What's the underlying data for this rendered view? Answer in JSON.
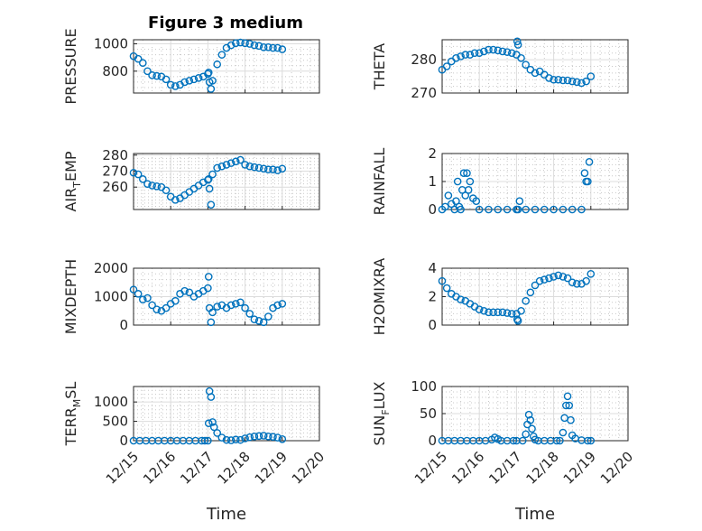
{
  "figure": {
    "title": "Figure 3 medium",
    "colors": {
      "marker": "#0072bd",
      "axes": "#262626",
      "grid": "#dcdcdc"
    }
  },
  "chart_data": [
    {
      "type": "scatter",
      "id": "pressure",
      "ylabel": "PRESSURE",
      "xlim": [
        "12/15",
        "12/20"
      ],
      "ylim": [
        640,
        1030
      ],
      "yticks": [
        800,
        1000
      ],
      "xticks": [],
      "grid": "major+minor",
      "x": [
        "12/15 00:00",
        "12/15 03:00",
        "12/15 06:00",
        "12/15 09:00",
        "12/15 12:00",
        "12/15 15:00",
        "12/15 18:00",
        "12/15 21:00",
        "12/16 00:00",
        "12/16 03:00",
        "12/16 06:00",
        "12/16 09:00",
        "12/16 12:00",
        "12/16 15:00",
        "12/16 18:00",
        "12/16 21:00",
        "12/17 00:00",
        "12/17 00:30",
        "12/17 01:00",
        "12/17 02:00",
        "12/17 03:00",
        "12/17 06:00",
        "12/17 09:00",
        "12/17 12:00",
        "12/17 15:00",
        "12/17 18:00",
        "12/17 21:00",
        "12/18 00:00",
        "12/18 03:00",
        "12/18 06:00",
        "12/18 09:00",
        "12/18 12:00",
        "12/18 15:00",
        "12/18 18:00",
        "12/18 21:00",
        "12/19 00:00"
      ],
      "y": [
        910,
        890,
        860,
        800,
        770,
        765,
        760,
        740,
        700,
        690,
        700,
        720,
        730,
        740,
        750,
        760,
        780,
        790,
        720,
        670,
        730,
        850,
        920,
        970,
        990,
        1005,
        1010,
        1005,
        1000,
        990,
        985,
        975,
        975,
        970,
        970,
        960
      ]
    },
    {
      "type": "scatter",
      "id": "theta",
      "ylabel": "THETA",
      "xlim": [
        "12/15",
        "12/20"
      ],
      "ylim": [
        270,
        286
      ],
      "yticks": [
        270,
        280
      ],
      "xticks": [],
      "grid": "major+minor",
      "x": [
        "12/15 00:00",
        "12/15 03:00",
        "12/15 06:00",
        "12/15 09:00",
        "12/15 12:00",
        "12/15 15:00",
        "12/15 18:00",
        "12/15 21:00",
        "12/16 00:00",
        "12/16 03:00",
        "12/16 06:00",
        "12/16 09:00",
        "12/16 12:00",
        "12/16 15:00",
        "12/16 18:00",
        "12/16 21:00",
        "12/17 00:00",
        "12/17 00:30",
        "12/17 01:00",
        "12/17 03:00",
        "12/17 06:00",
        "12/17 09:00",
        "12/17 12:00",
        "12/17 15:00",
        "12/17 18:00",
        "12/17 21:00",
        "12/18 00:00",
        "12/18 03:00",
        "12/18 06:00",
        "12/18 09:00",
        "12/18 12:00",
        "12/18 15:00",
        "12/18 18:00",
        "12/18 21:00",
        "12/19 00:00"
      ],
      "y": [
        277,
        278,
        279.5,
        280.5,
        281,
        281.5,
        281.5,
        282,
        282,
        282.5,
        283,
        283,
        282.8,
        282.5,
        282.3,
        282,
        281.5,
        285.5,
        284.5,
        280.5,
        278.5,
        277,
        276,
        276.5,
        275.5,
        274.5,
        274,
        274,
        273.8,
        273.8,
        273.5,
        273.3,
        273,
        273.5,
        275
      ]
    },
    {
      "type": "scatter",
      "id": "air-temp",
      "ylabel": "AIR_TEMP",
      "xlim": [
        "12/15",
        "12/20"
      ],
      "ylim": [
        246,
        281
      ],
      "yticks": [
        260,
        270,
        280
      ],
      "xticks": [],
      "grid": "major+minor",
      "x": [
        "12/15 00:00",
        "12/15 03:00",
        "12/15 06:00",
        "12/15 09:00",
        "12/15 12:00",
        "12/15 15:00",
        "12/15 18:00",
        "12/15 21:00",
        "12/16 00:00",
        "12/16 03:00",
        "12/16 06:00",
        "12/16 09:00",
        "12/16 12:00",
        "12/16 15:00",
        "12/16 18:00",
        "12/16 21:00",
        "12/17 00:00",
        "12/17 00:30",
        "12/17 01:00",
        "12/17 02:00",
        "12/17 03:00",
        "12/17 06:00",
        "12/17 09:00",
        "12/17 12:00",
        "12/17 15:00",
        "12/17 18:00",
        "12/17 21:00",
        "12/18 00:00",
        "12/18 03:00",
        "12/18 06:00",
        "12/18 09:00",
        "12/18 12:00",
        "12/18 15:00",
        "12/18 18:00",
        "12/18 21:00",
        "12/19 00:00"
      ],
      "y": [
        269,
        268,
        265,
        262,
        261,
        260.5,
        260,
        258,
        254,
        252,
        253,
        255,
        257,
        259,
        261,
        263,
        264.5,
        265,
        259,
        249,
        268,
        272,
        273,
        274,
        275,
        276,
        277,
        274,
        273,
        272.5,
        272,
        271.5,
        271,
        271,
        270.5,
        271.5
      ]
    },
    {
      "type": "scatter",
      "id": "rainfall",
      "ylabel": "RAINFALL",
      "xlim": [
        "12/15",
        "12/20"
      ],
      "ylim": [
        0,
        2
      ],
      "yticks": [
        0,
        1,
        2
      ],
      "xticks": [],
      "grid": "major+minor",
      "x": [
        "12/15 00:00",
        "12/15 02:00",
        "12/15 04:00",
        "12/15 06:00",
        "12/15 08:00",
        "12/15 09:00",
        "12/15 10:00",
        "12/15 11:00",
        "12/15 12:00",
        "12/15 13:00",
        "12/15 14:00",
        "12/15 15:00",
        "12/15 16:00",
        "12/15 17:00",
        "12/15 18:00",
        "12/15 20:00",
        "12/15 22:00",
        "12/16 00:00",
        "12/16 06:00",
        "12/16 12:00",
        "12/16 18:00",
        "12/17 00:00",
        "12/17 01:00",
        "12/17 02:00",
        "12/17 06:00",
        "12/17 12:00",
        "12/17 18:00",
        "12/18 00:00",
        "12/18 06:00",
        "12/18 12:00",
        "12/18 18:00",
        "12/18 20:00",
        "12/18 21:00",
        "12/18 22:00",
        "12/18 23:00"
      ],
      "y": [
        0,
        0.1,
        0.5,
        0.2,
        0,
        0.3,
        1.0,
        0.1,
        0,
        0.7,
        1.3,
        0.5,
        1.3,
        0.7,
        1.0,
        0.4,
        0.3,
        0,
        0,
        0,
        0,
        0,
        0,
        0.3,
        0,
        0,
        0,
        0,
        0,
        0,
        0,
        1.3,
        1.0,
        1.0,
        1.7
      ]
    },
    {
      "type": "scatter",
      "id": "mixdepth",
      "ylabel": "MIXDEPTH",
      "xlim": [
        "12/15",
        "12/20"
      ],
      "ylim": [
        0,
        2000
      ],
      "yticks": [
        0,
        1000,
        2000
      ],
      "xticks": [],
      "grid": "major+minor",
      "x": [
        "12/15 00:00",
        "12/15 03:00",
        "12/15 06:00",
        "12/15 09:00",
        "12/15 12:00",
        "12/15 15:00",
        "12/15 18:00",
        "12/15 21:00",
        "12/16 00:00",
        "12/16 03:00",
        "12/16 06:00",
        "12/16 09:00",
        "12/16 12:00",
        "12/16 15:00",
        "12/16 18:00",
        "12/16 21:00",
        "12/17 00:00",
        "12/17 00:30",
        "12/17 01:00",
        "12/17 02:00",
        "12/17 03:00",
        "12/17 06:00",
        "12/17 09:00",
        "12/17 12:00",
        "12/17 15:00",
        "12/17 18:00",
        "12/17 21:00",
        "12/18 00:00",
        "12/18 03:00",
        "12/18 06:00",
        "12/18 09:00",
        "12/18 12:00",
        "12/18 15:00",
        "12/18 18:00",
        "12/18 21:00",
        "12/19 00:00"
      ],
      "y": [
        1250,
        1100,
        900,
        950,
        700,
        550,
        500,
        600,
        750,
        850,
        1100,
        1200,
        1150,
        1000,
        1100,
        1200,
        1300,
        1700,
        600,
        100,
        450,
        650,
        700,
        600,
        700,
        750,
        800,
        600,
        400,
        200,
        150,
        100,
        300,
        600,
        700,
        750
      ]
    },
    {
      "type": "scatter",
      "id": "h2omixra",
      "ylabel": "H2OMIXRA",
      "xlim": [
        "12/15",
        "12/20"
      ],
      "ylim": [
        0,
        4
      ],
      "yticks": [
        0,
        2,
        4
      ],
      "xticks": [],
      "grid": "major+minor",
      "x": [
        "12/15 00:00",
        "12/15 03:00",
        "12/15 06:00",
        "12/15 09:00",
        "12/15 12:00",
        "12/15 15:00",
        "12/15 18:00",
        "12/15 21:00",
        "12/16 00:00",
        "12/16 03:00",
        "12/16 06:00",
        "12/16 09:00",
        "12/16 12:00",
        "12/16 15:00",
        "12/16 18:00",
        "12/16 21:00",
        "12/17 00:00",
        "12/17 00:30",
        "12/17 01:00",
        "12/17 03:00",
        "12/17 06:00",
        "12/17 09:00",
        "12/17 12:00",
        "12/17 15:00",
        "12/17 18:00",
        "12/17 21:00",
        "12/18 00:00",
        "12/18 03:00",
        "12/18 06:00",
        "12/18 09:00",
        "12/18 12:00",
        "12/18 15:00",
        "12/18 18:00",
        "12/18 21:00",
        "12/19 00:00"
      ],
      "y": [
        3.1,
        2.6,
        2.2,
        2.0,
        1.8,
        1.7,
        1.5,
        1.3,
        1.1,
        1.0,
        0.9,
        0.9,
        0.9,
        0.9,
        0.85,
        0.8,
        0.8,
        0.4,
        0.3,
        1.0,
        1.7,
        2.3,
        2.8,
        3.1,
        3.2,
        3.3,
        3.4,
        3.5,
        3.4,
        3.3,
        3.0,
        2.9,
        2.9,
        3.1,
        3.6
      ]
    },
    {
      "type": "scatter",
      "id": "terr-msl",
      "ylabel": "TERR_MSL",
      "xlim": [
        "12/15",
        "12/20"
      ],
      "ylim": [
        0,
        1400
      ],
      "yticks": [
        0,
        500,
        1000
      ],
      "xticks": [
        "12/15",
        "12/16",
        "12/17",
        "12/18",
        "12/19",
        "12/20"
      ],
      "xlabel": "Time",
      "grid": "major+minor",
      "x": [
        "12/15 00:00",
        "12/15 04:00",
        "12/15 08:00",
        "12/15 12:00",
        "12/15 16:00",
        "12/15 20:00",
        "12/16 00:00",
        "12/16 04:00",
        "12/16 08:00",
        "12/16 12:00",
        "12/16 16:00",
        "12/16 20:00",
        "12/16 22:00",
        "12/17 00:00",
        "12/17 00:30",
        "12/17 01:00",
        "12/17 02:00",
        "12/17 03:00",
        "12/17 04:00",
        "12/17 06:00",
        "12/17 09:00",
        "12/17 12:00",
        "12/17 15:00",
        "12/17 18:00",
        "12/17 21:00",
        "12/18 00:00",
        "12/18 03:00",
        "12/18 06:00",
        "12/18 09:00",
        "12/18 12:00",
        "12/18 15:00",
        "12/18 18:00",
        "12/18 21:00",
        "12/19 00:00"
      ],
      "y": [
        0,
        0,
        0,
        0,
        0,
        0,
        0,
        0,
        0,
        0,
        0,
        0,
        0,
        0,
        450,
        1280,
        1130,
        480,
        350,
        200,
        80,
        20,
        10,
        30,
        20,
        60,
        90,
        110,
        120,
        130,
        110,
        100,
        80,
        40
      ]
    },
    {
      "type": "scatter",
      "id": "sun-flux",
      "ylabel": "SUN_FLUX",
      "xlim": [
        "12/15",
        "12/20"
      ],
      "ylim": [
        0,
        100
      ],
      "yticks": [
        0,
        50,
        100
      ],
      "xticks": [
        "12/15",
        "12/16",
        "12/17",
        "12/18",
        "12/19",
        "12/20"
      ],
      "xlabel": "Time",
      "grid": "major+minor",
      "x": [
        "12/15 00:00",
        "12/15 04:00",
        "12/15 08:00",
        "12/15 12:00",
        "12/15 16:00",
        "12/15 20:00",
        "12/16 00:00",
        "12/16 04:00",
        "12/16 08:00",
        "12/16 10:00",
        "12/16 12:00",
        "12/16 14:00",
        "12/16 18:00",
        "12/16 22:00",
        "12/17 00:00",
        "12/17 04:00",
        "12/17 06:00",
        "12/17 07:00",
        "12/17 08:00",
        "12/17 09:00",
        "12/17 10:00",
        "12/17 11:00",
        "12/17 12:00",
        "12/17 14:00",
        "12/17 18:00",
        "12/17 22:00",
        "12/18 02:00",
        "12/18 04:00",
        "12/18 06:00",
        "12/18 07:00",
        "12/18 08:00",
        "12/18 09:00",
        "12/18 10:00",
        "12/18 11:00",
        "12/18 12:00",
        "12/18 14:00",
        "12/18 18:00",
        "12/18 22:00",
        "12/19 00:00"
      ],
      "y": [
        0,
        0,
        0,
        0,
        0,
        0,
        0,
        0,
        2,
        6,
        3,
        0,
        0,
        0,
        0,
        0,
        12,
        30,
        48,
        38,
        22,
        8,
        2,
        0,
        0,
        0,
        0,
        0,
        15,
        42,
        65,
        82,
        65,
        38,
        10,
        4,
        1,
        0,
        0
      ]
    }
  ]
}
